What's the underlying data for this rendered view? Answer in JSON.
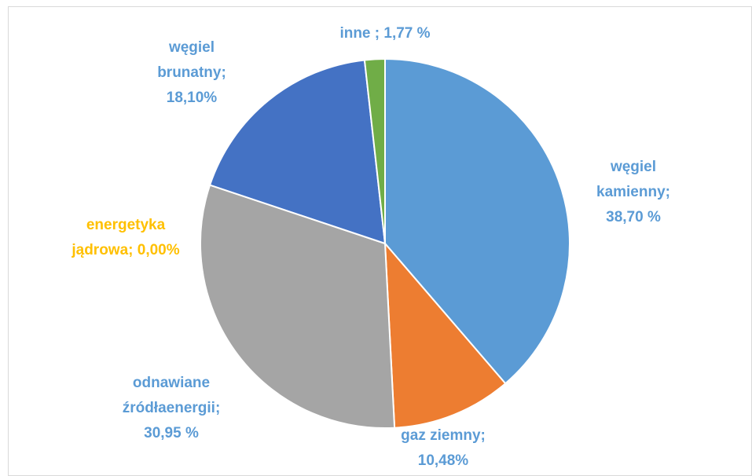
{
  "chart_data": {
    "type": "pie",
    "values": [
      38.7,
      10.48,
      30.95,
      0.0,
      18.1,
      1.77
    ],
    "value_labels": [
      [
        "węgiel",
        "kamienny;",
        "38,70 %"
      ],
      [
        "gaz ziemny;",
        "10,48%"
      ],
      [
        "odnawiane",
        "źródłaenergii;",
        "30,95 %"
      ],
      [
        "energetyka",
        "jądrowa; 0,00%"
      ],
      [
        "węgiel",
        "brunatny;",
        "18,10%"
      ],
      [
        "inne ; 1,77 %"
      ]
    ],
    "colors": [
      "#5b9bd5",
      "#ed7d31",
      "#a5a5a5",
      "#ffc000",
      "#4472c4",
      "#70ad47"
    ],
    "label_colors": [
      "#5b9bd5",
      "#5b9bd5",
      "#5b9bd5",
      "#ffc000",
      "#5b9bd5",
      "#5b9bd5"
    ]
  }
}
